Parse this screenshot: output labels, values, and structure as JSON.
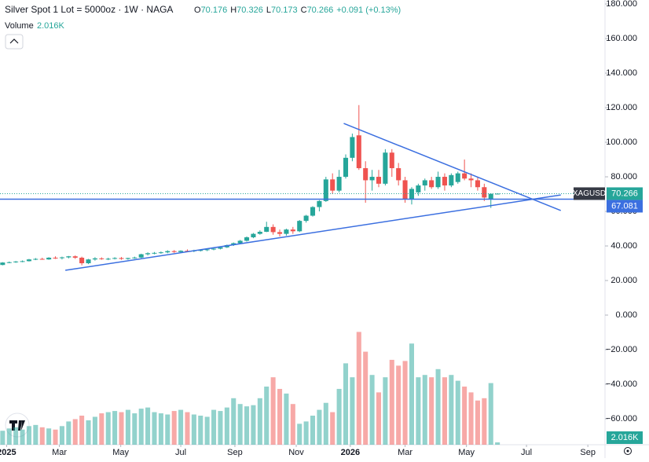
{
  "chart_data": {
    "type": "candlestick",
    "title": "Silver Spot 1 Lot = 5000oz · 1W · NAGA",
    "ohlc_letters": [
      "O",
      "H",
      "L",
      "C"
    ],
    "change": "+0.091 (+0.13%)",
    "symbol": "XAGUSD",
    "up_color": "#26a69a",
    "down_color": "#ef5350",
    "xlim": [
      -0.4,
      91.3
    ],
    "xticks": [
      {
        "value": 0.6,
        "label": "2025"
      },
      {
        "value": 8.6,
        "label": "Mar"
      },
      {
        "value": 17.9,
        "label": "May"
      },
      {
        "value": 27.0,
        "label": "Jul"
      },
      {
        "value": 35.2,
        "label": "Sep"
      },
      {
        "value": 44.5,
        "label": "Nov"
      },
      {
        "value": 52.7,
        "label": "2026"
      },
      {
        "value": 61.0,
        "label": "Mar"
      },
      {
        "value": 70.3,
        "label": "May"
      },
      {
        "value": 79.4,
        "label": "Jul"
      },
      {
        "value": 88.7,
        "label": "Sep"
      }
    ],
    "ylim": [
      -75,
      182.3
    ],
    "yticks": [
      {
        "value": 180,
        "label": "180.000"
      },
      {
        "value": 160,
        "label": "160.000"
      },
      {
        "value": 140,
        "label": "140.000"
      },
      {
        "value": 120,
        "label": "120.000"
      },
      {
        "value": 100,
        "label": "100.000"
      },
      {
        "value": 80,
        "label": "80.000"
      },
      {
        "value": 60,
        "label": "60.000"
      },
      {
        "value": 40,
        "label": "40.000"
      },
      {
        "value": 20,
        "label": "20.000"
      },
      {
        "value": 0,
        "label": "0.000"
      },
      {
        "value": -20,
        "label": "−20.000"
      },
      {
        "value": -40,
        "label": "−40.000"
      },
      {
        "value": -60,
        "label": "−60.000"
      }
    ],
    "candles": [
      [
        29.0,
        30.6,
        28.8,
        30.4
      ],
      [
        30.4,
        31.0,
        30.0,
        30.6
      ],
      [
        30.6,
        31.3,
        30.2,
        31.0
      ],
      [
        31.0,
        31.6,
        30.6,
        31.2
      ],
      [
        31.2,
        32.5,
        31.0,
        32.2
      ],
      [
        32.2,
        33.0,
        31.8,
        32.5
      ],
      [
        32.5,
        33.2,
        32.0,
        32.2
      ],
      [
        32.2,
        33.5,
        32.0,
        33.2
      ],
      [
        33.2,
        34.0,
        32.5,
        33.0
      ],
      [
        33.0,
        33.8,
        32.2,
        33.4
      ],
      [
        33.4,
        34.2,
        32.8,
        34.0
      ],
      [
        34.0,
        34.5,
        32.5,
        33.2
      ],
      [
        33.2,
        33.8,
        28.8,
        30.0
      ],
      [
        30.0,
        32.5,
        29.5,
        32.2
      ],
      [
        32.2,
        33.5,
        31.5,
        32.8
      ],
      [
        32.8,
        33.4,
        32.0,
        32.4
      ],
      [
        32.4,
        33.2,
        31.8,
        32.6
      ],
      [
        32.6,
        33.5,
        32.2,
        33.0
      ],
      [
        33.0,
        33.6,
        32.0,
        32.5
      ],
      [
        32.5,
        33.2,
        32.0,
        33.0
      ],
      [
        33.0,
        33.8,
        32.6,
        33.3
      ],
      [
        33.3,
        35.5,
        33.0,
        35.2
      ],
      [
        35.2,
        36.3,
        34.5,
        35.8
      ],
      [
        35.8,
        36.5,
        35.2,
        36.0
      ],
      [
        36.0,
        36.8,
        35.5,
        36.3
      ],
      [
        36.3,
        37.5,
        35.8,
        37.0
      ],
      [
        37.0,
        37.6,
        36.0,
        36.5
      ],
      [
        36.5,
        37.5,
        36.2,
        37.2
      ],
      [
        37.2,
        38.0,
        36.5,
        37.0
      ],
      [
        37.0,
        37.8,
        36.4,
        37.4
      ],
      [
        37.4,
        38.0,
        36.8,
        37.6
      ],
      [
        37.6,
        38.5,
        37.0,
        38.0
      ],
      [
        38.0,
        39.0,
        37.5,
        38.4
      ],
      [
        38.4,
        39.5,
        38.0,
        39.2
      ],
      [
        39.2,
        40.8,
        38.8,
        40.5
      ],
      [
        40.5,
        42.0,
        40.0,
        41.6
      ],
      [
        41.6,
        43.5,
        41.0,
        43.0
      ],
      [
        43.0,
        45.5,
        42.5,
        45.0
      ],
      [
        45.0,
        47.5,
        44.5,
        47.0
      ],
      [
        47.0,
        49.0,
        46.5,
        48.2
      ],
      [
        48.2,
        54.0,
        48.0,
        51.0
      ],
      [
        51.0,
        52.5,
        46.5,
        48.0
      ],
      [
        48.0,
        49.5,
        45.5,
        47.0
      ],
      [
        47.0,
        50.0,
        46.0,
        49.5
      ],
      [
        49.5,
        51.0,
        47.0,
        48.5
      ],
      [
        48.5,
        55.0,
        48.0,
        54.5
      ],
      [
        54.5,
        58.0,
        53.5,
        57.5
      ],
      [
        57.5,
        63.0,
        57.0,
        62.5
      ],
      [
        62.5,
        66.5,
        60.0,
        66.0
      ],
      [
        66.0,
        80.0,
        65.5,
        78.5
      ],
      [
        78.5,
        82.0,
        70.0,
        72.0
      ],
      [
        72.0,
        84.0,
        71.0,
        80.0
      ],
      [
        80.0,
        93.0,
        79.0,
        91.0
      ],
      [
        91.0,
        105.0,
        89.0,
        103.0
      ],
      [
        104.0,
        121.5,
        84.0,
        85.0
      ],
      [
        85,
        89,
        65,
        78
      ],
      [
        78,
        84,
        72,
        80
      ],
      [
        80,
        84,
        74,
        76
      ],
      [
        76,
        96,
        75,
        94
      ],
      [
        94,
        96,
        80,
        85
      ],
      [
        85,
        88,
        75,
        78
      ],
      [
        78,
        80,
        65,
        67
      ],
      [
        67,
        74,
        64,
        73
      ],
      [
        71,
        76,
        69,
        75
      ],
      [
        75,
        79,
        72,
        78
      ],
      [
        78,
        80,
        73,
        74
      ],
      [
        74,
        83,
        73,
        80
      ],
      [
        80,
        82,
        72,
        75
      ],
      [
        75,
        82,
        74,
        81
      ],
      [
        77,
        83,
        76,
        82
      ],
      [
        82,
        90,
        78,
        79
      ],
      [
        79,
        82,
        74,
        78
      ],
      [
        78,
        80,
        72,
        74
      ],
      [
        74,
        76,
        66,
        68
      ],
      [
        67,
        70.4,
        62,
        70.176
      ],
      [
        70.176,
        70.326,
        70.173,
        70.266
      ]
    ],
    "volume": {
      "name": "Volume",
      "ylim": [
        0,
        100
      ],
      "last_label": "2.016K",
      "values": [
        12,
        14,
        15,
        13,
        16,
        17,
        15,
        14,
        13,
        16,
        20,
        22,
        25,
        21,
        24,
        27,
        28,
        29,
        28,
        30,
        27,
        31,
        32,
        28,
        27,
        26,
        29,
        30,
        28,
        26,
        25,
        24,
        30,
        29,
        32,
        40,
        35,
        33,
        34,
        40,
        50,
        58,
        48,
        44,
        35,
        18,
        20,
        25,
        30,
        36,
        28,
        48,
        70,
        58,
        97,
        80,
        60,
        45,
        58,
        73,
        68,
        72,
        87,
        58,
        60,
        58,
        65,
        58,
        60,
        55,
        50,
        45,
        38,
        40,
        53,
        2.016
      ]
    },
    "hline": 67.081,
    "drawings": [
      {
        "color": "#3b6fe0",
        "points": [
          [
            9.5,
            25.9
          ],
          [
            84.6,
            69.5
          ]
        ]
      },
      {
        "color": "#3b6fe0",
        "points": [
          [
            51.7,
            110.9
          ],
          [
            84.6,
            60.5
          ]
        ]
      }
    ]
  }
}
